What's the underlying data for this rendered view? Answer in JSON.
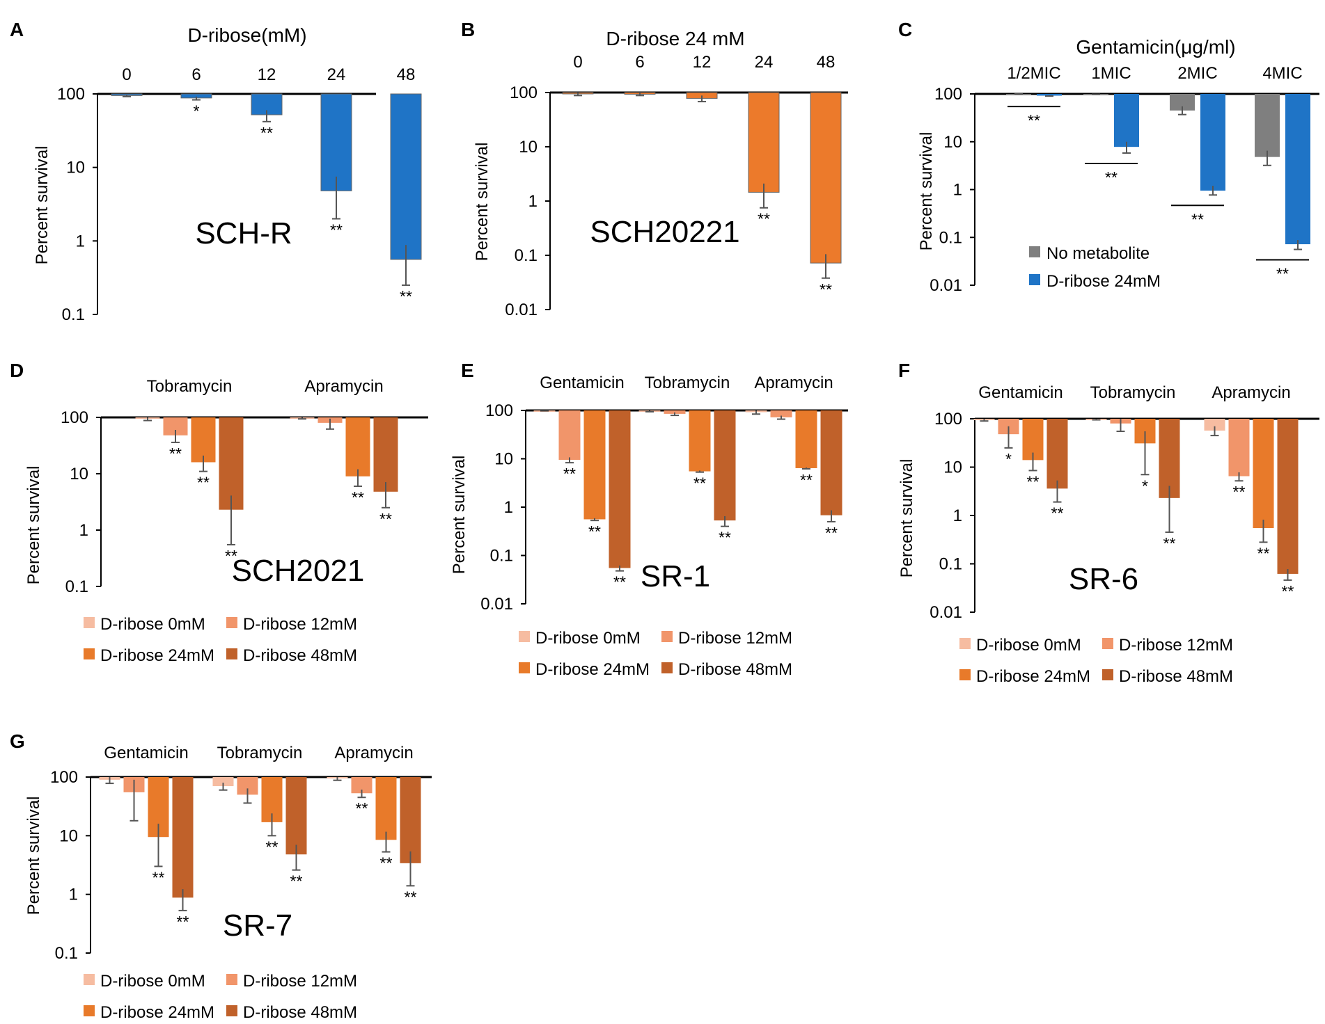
{
  "colors": {
    "blue": "#1f74c6",
    "orange": "#ec7a2b",
    "gray": "#7f7f7f",
    "r0": "#f6bca1",
    "r12": "#f1956a",
    "r24": "#e87a2a",
    "r48": "#c0612a",
    "axis": "#000000",
    "errorbar": "#555555"
  },
  "chart_data": [
    {
      "id": "A",
      "type": "bar",
      "panel_label": "A",
      "title": "D-ribose(mM)",
      "ylabel": "Percent survival",
      "strain": "SCH-R",
      "ylim": [
        0.1,
        100
      ],
      "yscale": "log",
      "yticks": [
        "100",
        "10",
        "1",
        "0.1"
      ],
      "categories": [
        "0",
        "6",
        "12",
        "24",
        "48"
      ],
      "series": [
        {
          "name": "D-ribose",
          "color": "blue",
          "values": [
            95,
            88,
            52,
            4.8,
            0.56
          ],
          "err_low": [
            92,
            83,
            42,
            2.0,
            0.25
          ],
          "err_high": [
            97,
            92,
            60,
            7.5,
            0.88
          ],
          "sig": [
            "",
            "*",
            "**",
            "**",
            "**"
          ]
        }
      ]
    },
    {
      "id": "B",
      "type": "bar",
      "panel_label": "B",
      "title": "D-ribose 24 mM",
      "ylabel": "Percent survival",
      "strain": "SCH20221",
      "ylim": [
        0.01,
        100
      ],
      "yscale": "log",
      "yticks": [
        "100",
        "10",
        "1",
        "0.1",
        "0.01"
      ],
      "categories": [
        "0",
        "6",
        "12",
        "24",
        "48"
      ],
      "series": [
        {
          "name": "D-ribose",
          "color": "orange",
          "values": [
            95,
            93,
            78,
            1.45,
            0.072
          ],
          "err_low": [
            88,
            88,
            68,
            0.75,
            0.038
          ],
          "err_high": [
            100,
            98,
            88,
            2.1,
            0.105
          ],
          "sig": [
            "",
            "",
            "",
            "**",
            "**"
          ]
        }
      ]
    },
    {
      "id": "C",
      "type": "bar",
      "panel_label": "C",
      "title": "Gentamicin(μg/ml)",
      "ylabel": "Percent survival",
      "ylim": [
        0.01,
        100
      ],
      "yscale": "log",
      "yticks": [
        "100",
        "10",
        "1",
        "0.1",
        "0.01"
      ],
      "categories": [
        "1/2MIC",
        "1MIC",
        "2MIC",
        "4MIC"
      ],
      "series": [
        {
          "name": "No metabolite",
          "color": "gray",
          "values": [
            100,
            98,
            45,
            4.8
          ],
          "err_low": [
            100,
            98,
            37,
            3.2
          ],
          "err_high": [
            100,
            98,
            55,
            6.5
          ],
          "sig": [
            "",
            "",
            "",
            ""
          ]
        },
        {
          "name": "D-ribose 24mM",
          "color": "blue",
          "values": [
            92,
            7.8,
            0.95,
            0.072
          ],
          "err_low": [
            90,
            5.8,
            0.77,
            0.056
          ],
          "err_high": [
            94,
            10,
            1.2,
            0.088
          ],
          "sig": [
            "",
            "",
            "",
            ""
          ]
        }
      ],
      "group_sig": [
        "**",
        "**",
        "**",
        "**"
      ]
    },
    {
      "id": "D",
      "type": "bar",
      "panel_label": "D",
      "ylabel": "Percent survival",
      "strain": "SCH2021",
      "ylim": [
        0.1,
        100
      ],
      "yscale": "log",
      "yticks": [
        "100",
        "10",
        "1",
        "0.1"
      ],
      "categories": [
        "Tobramycin",
        "Apramycin"
      ],
      "series": [
        {
          "name": "D-ribose 0mM",
          "color": "r0",
          "values": [
            96,
            97
          ],
          "err_low": [
            88,
            94
          ],
          "err_high": [
            100,
            100
          ],
          "sig": [
            "",
            ""
          ]
        },
        {
          "name": "D-ribose 12mM",
          "color": "r12",
          "values": [
            48,
            80
          ],
          "err_low": [
            36,
            62
          ],
          "err_high": [
            60,
            95
          ],
          "sig": [
            "**",
            ""
          ]
        },
        {
          "name": "D-ribose 24mM",
          "color": "r24",
          "values": [
            16,
            9
          ],
          "err_low": [
            11,
            6
          ],
          "err_high": [
            21,
            12
          ],
          "sig": [
            "**",
            "**"
          ]
        },
        {
          "name": "D-ribose 48mM",
          "color": "r48",
          "values": [
            2.3,
            4.8
          ],
          "err_low": [
            0.55,
            2.5
          ],
          "err_high": [
            4.1,
            7.1
          ],
          "sig": [
            "**",
            "**"
          ]
        }
      ]
    },
    {
      "id": "E",
      "type": "bar",
      "panel_label": "E",
      "ylabel": "Percent survival",
      "strain": "SR-1",
      "ylim": [
        0.01,
        100
      ],
      "yscale": "log",
      "yticks": [
        "100",
        "10",
        "1",
        "0.1",
        "0.01"
      ],
      "categories": [
        "Gentamicin",
        "Tobramycin",
        "Apramycin"
      ],
      "series": [
        {
          "name": "D-ribose 0mM",
          "color": "r0",
          "values": [
            99,
            97,
            92
          ],
          "err_low": [
            98,
            94,
            84
          ],
          "err_high": [
            100,
            100,
            100
          ],
          "sig": [
            "",
            "",
            ""
          ]
        },
        {
          "name": "D-ribose 12mM",
          "color": "r12",
          "values": [
            9.5,
            85,
            72
          ],
          "err_low": [
            8.3,
            79,
            66
          ],
          "err_high": [
            10.7,
            91,
            78
          ],
          "sig": [
            "**",
            "",
            ""
          ]
        },
        {
          "name": "D-ribose 24mM",
          "color": "r24",
          "values": [
            0.56,
            5.5,
            6.4
          ],
          "err_low": [
            0.53,
            5.3,
            6.2
          ],
          "err_high": [
            0.59,
            5.7,
            6.6
          ],
          "sig": [
            "**",
            "**",
            "**"
          ]
        },
        {
          "name": "D-ribose 48mM",
          "color": "r48",
          "values": [
            0.055,
            0.53,
            0.68
          ],
          "err_low": [
            0.048,
            0.4,
            0.5
          ],
          "err_high": [
            0.062,
            0.65,
            0.86
          ],
          "sig": [
            "**",
            "**",
            "**"
          ]
        }
      ]
    },
    {
      "id": "F",
      "type": "bar",
      "panel_label": "F",
      "ylabel": "Percent survival",
      "strain": "SR-6",
      "ylim": [
        0.01,
        100
      ],
      "yscale": "log",
      "yticks": [
        "100",
        "10",
        "1",
        "0.1",
        "0.01"
      ],
      "categories": [
        "Gentamicin",
        "Tobramycin",
        "Apramycin"
      ],
      "series": [
        {
          "name": "D-ribose 0mM",
          "color": "r0",
          "values": [
            96,
            98,
            57
          ],
          "err_low": [
            90,
            95,
            45
          ],
          "err_high": [
            100,
            100,
            70
          ],
          "sig": [
            "",
            "",
            ""
          ]
        },
        {
          "name": "D-ribose 12mM",
          "color": "r12",
          "values": [
            48,
            80,
            6.5
          ],
          "err_low": [
            25,
            55,
            5.2
          ],
          "err_high": [
            70,
            100,
            7.8
          ],
          "sig": [
            "*",
            "",
            "**"
          ]
        },
        {
          "name": "D-ribose 24mM",
          "color": "r24",
          "values": [
            14,
            31,
            0.55
          ],
          "err_low": [
            8.5,
            7,
            0.28
          ],
          "err_high": [
            20,
            55,
            0.82
          ],
          "sig": [
            "**",
            "*",
            "**"
          ]
        },
        {
          "name": "D-ribose 48mM",
          "color": "r48",
          "values": [
            3.6,
            2.3,
            0.062
          ],
          "err_low": [
            1.9,
            0.45,
            0.046
          ],
          "err_high": [
            5.3,
            4.1,
            0.078
          ],
          "sig": [
            "**",
            "**",
            "**"
          ]
        }
      ]
    },
    {
      "id": "G",
      "type": "bar",
      "panel_label": "G",
      "ylabel": "Percent survival",
      "strain": "SR-7",
      "ylim": [
        0.1,
        100
      ],
      "yscale": "log",
      "yticks": [
        "100",
        "10",
        "1",
        "0.1"
      ],
      "categories": [
        "Gentamicin",
        "Tobramycin",
        "Apramycin"
      ],
      "series": [
        {
          "name": "D-ribose 0mM",
          "color": "r0",
          "values": [
            90,
            70,
            95
          ],
          "err_low": [
            78,
            60,
            88
          ],
          "err_high": [
            100,
            80,
            100
          ],
          "sig": [
            "",
            "",
            ""
          ]
        },
        {
          "name": "D-ribose 12mM",
          "color": "r12",
          "values": [
            55,
            50,
            53
          ],
          "err_low": [
            18,
            36,
            45
          ],
          "err_high": [
            90,
            64,
            61
          ],
          "sig": [
            "",
            "",
            "**"
          ]
        },
        {
          "name": "D-ribose 24mM",
          "color": "r24",
          "values": [
            9.5,
            17,
            8.5
          ],
          "err_low": [
            3,
            10,
            5.3
          ],
          "err_high": [
            16,
            24,
            11.7
          ],
          "sig": [
            "**",
            "**",
            "**"
          ]
        },
        {
          "name": "D-ribose 48mM",
          "color": "r48",
          "values": [
            0.88,
            4.8,
            3.4
          ],
          "err_low": [
            0.53,
            2.6,
            1.4
          ],
          "err_high": [
            1.23,
            7,
            5.4
          ],
          "sig": [
            "**",
            "**",
            "**"
          ]
        }
      ]
    }
  ]
}
